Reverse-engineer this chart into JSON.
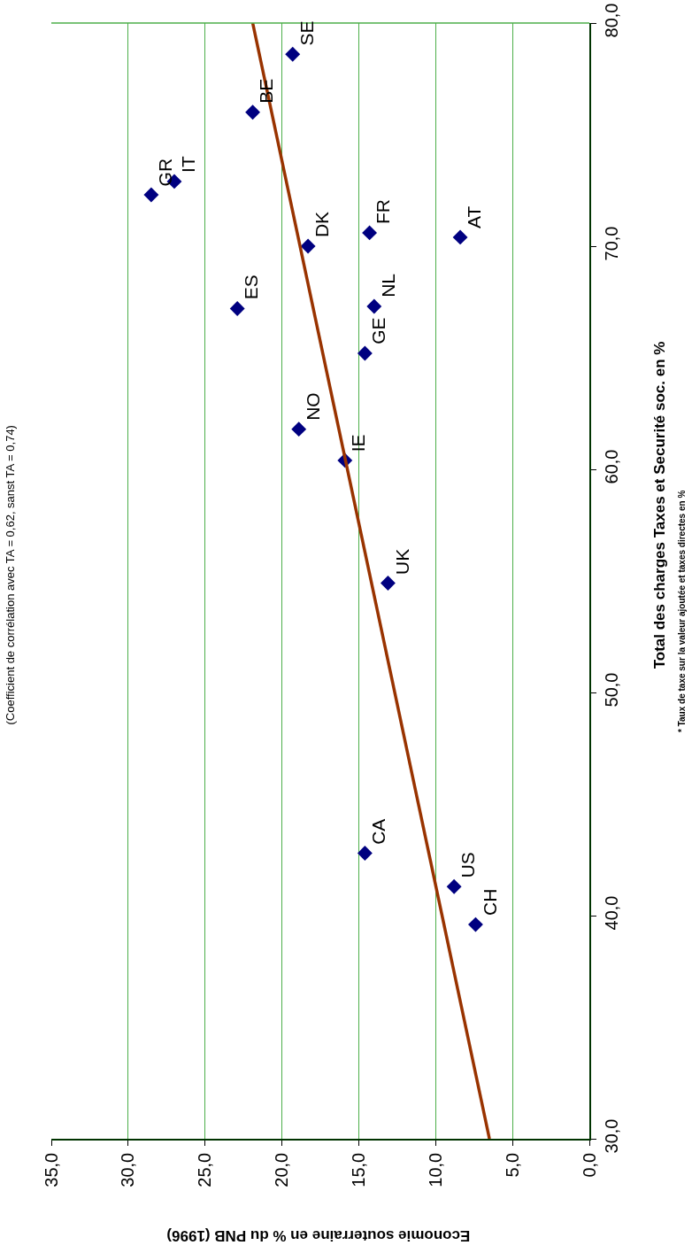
{
  "chart_data": {
    "type": "scatter",
    "title": "(Coefficient de corrélation avec TA = 0,62, sanst TA = 0,74)",
    "xlabel": "Economie souterraine en % du PNB (1996)",
    "ylabel": "Total des charges Taxes et Securité soc. en %",
    "series": [
      {
        "color": "#000080",
        "marker": "diamond",
        "x": [
          19.3,
          21.9,
          28.5,
          27.0,
          18.3,
          14.3,
          8.4,
          22.9,
          14.0,
          14.6,
          18.9,
          15.9,
          13.1,
          14.6,
          8.8,
          7.4
        ],
        "values": [
          78.6,
          76.0,
          72.3,
          72.9,
          70.0,
          70.6,
          70.4,
          67.2,
          67.3,
          65.2,
          61.8,
          60.4,
          54.9,
          42.8,
          41.3,
          39.6
        ]
      },
      {
        "type": "line",
        "marker": "none",
        "color": "#993300",
        "x": [
          6.5,
          21.9
        ],
        "values": [
          30,
          80
        ]
      }
    ],
    "annotations": [
      {
        "text": "SE",
        "x": 19.3,
        "y": 78.6
      },
      {
        "text": "BE",
        "x": 21.9,
        "y": 76.0
      },
      {
        "text": "GR",
        "x": 28.5,
        "y": 72.3
      },
      {
        "text": "IT",
        "x": 27.0,
        "y": 72.9
      },
      {
        "text": "DK",
        "x": 18.3,
        "y": 70.0
      },
      {
        "text": "FR",
        "x": 14.3,
        "y": 70.6
      },
      {
        "text": "AT",
        "x": 8.4,
        "y": 70.4
      },
      {
        "text": "ES",
        "x": 22.9,
        "y": 67.2
      },
      {
        "text": "NL",
        "x": 14.0,
        "y": 67.3
      },
      {
        "text": "GE",
        "x": 14.6,
        "y": 65.2
      },
      {
        "text": "NO",
        "x": 18.9,
        "y": 61.8
      },
      {
        "text": "IE",
        "x": 15.9,
        "y": 60.4
      },
      {
        "text": "UK",
        "x": 13.1,
        "y": 54.9
      },
      {
        "text": "CA",
        "x": 14.6,
        "y": 42.8
      },
      {
        "text": "US",
        "x": 8.8,
        "y": 41.3
      },
      {
        "text": "CH",
        "x": 7.4,
        "y": 39.6
      },
      "* Taux de taxe sur la valeur ajoutée et taxes directes en %"
    ],
    "xlim": [
      35,
      0
    ],
    "xticks": [
      {
        "value": 0,
        "label": "0,0"
      },
      {
        "value": 5,
        "label": "5,0"
      },
      {
        "value": 10,
        "label": "10,0"
      },
      {
        "value": 15,
        "label": "15,0"
      },
      {
        "value": 20,
        "label": "20,0"
      },
      {
        "value": 25,
        "label": "25,0"
      },
      {
        "value": 30,
        "label": "30,0"
      },
      {
        "value": 35,
        "label": "35,0"
      }
    ],
    "ylim": [
      30,
      80
    ],
    "yticks": [
      {
        "value": 30,
        "label": "30,0"
      },
      {
        "value": 40,
        "label": "40,0"
      },
      {
        "value": 50,
        "label": "50,0"
      },
      {
        "value": 60,
        "label": "60,0"
      },
      {
        "value": 70,
        "label": "70,0"
      },
      {
        "value": 80,
        "label": "80,0"
      }
    ],
    "grid": "x",
    "line_style": "solid"
  }
}
